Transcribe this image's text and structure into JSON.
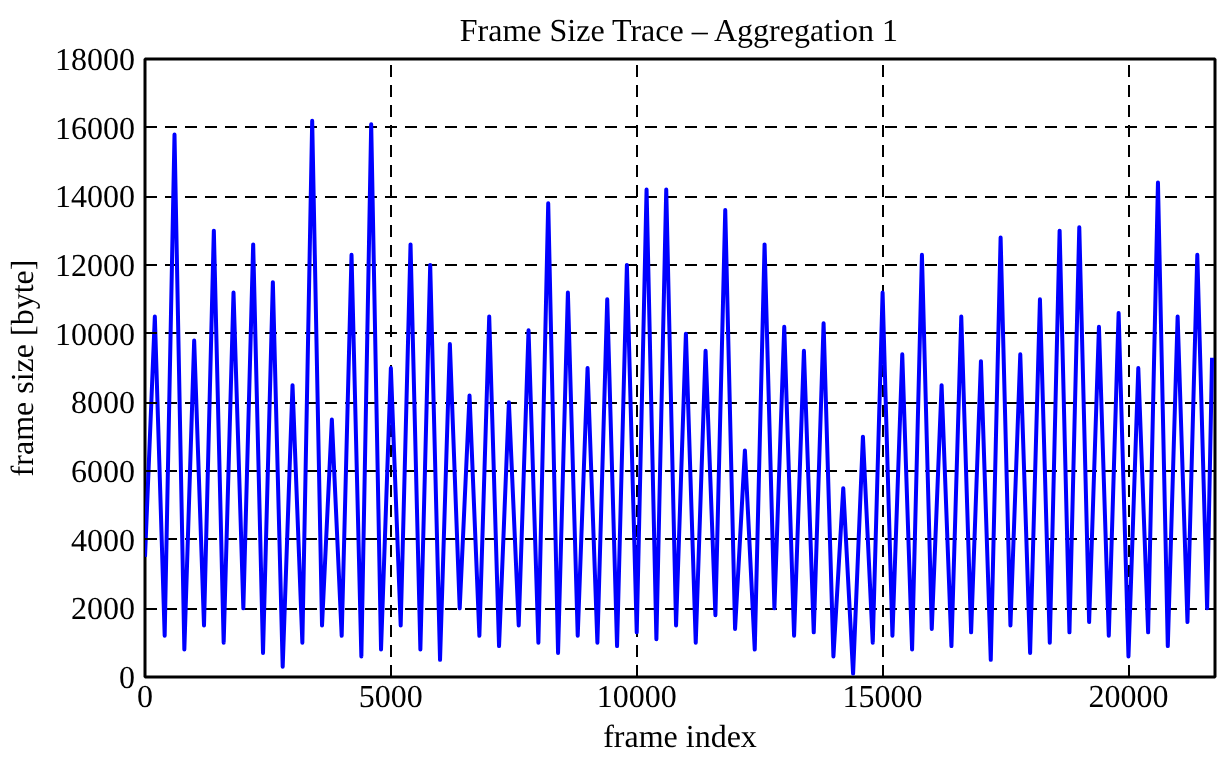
{
  "chart_data": {
    "type": "line",
    "title": "Frame Size Trace – Aggregation 1",
    "xlabel": "frame index",
    "ylabel": "frame size [byte]",
    "xlim": [
      0,
      21760
    ],
    "ylim": [
      0,
      18000
    ],
    "xticks": [
      0,
      5000,
      10000,
      15000,
      20000
    ],
    "yticks": [
      0,
      2000,
      4000,
      6000,
      8000,
      10000,
      12000,
      14000,
      16000,
      18000
    ],
    "grid": true,
    "line_style": "solid",
    "marker": "none",
    "series": [
      {
        "color": "#0000ff",
        "x": [
          0,
          200,
          400,
          600,
          800,
          1000,
          1200,
          1400,
          1600,
          1800,
          2000,
          2200,
          2400,
          2600,
          2800,
          3000,
          3200,
          3400,
          3600,
          3800,
          4000,
          4200,
          4400,
          4600,
          4800,
          5000,
          5200,
          5400,
          5600,
          5800,
          6000,
          6200,
          6400,
          6600,
          6800,
          7000,
          7200,
          7400,
          7600,
          7800,
          8000,
          8200,
          8400,
          8600,
          8800,
          9000,
          9200,
          9400,
          9600,
          9800,
          10000,
          10200,
          10400,
          10600,
          10800,
          11000,
          11200,
          11400,
          11600,
          11800,
          12000,
          12200,
          12400,
          12600,
          12800,
          13000,
          13200,
          13400,
          13600,
          13800,
          14000,
          14200,
          14400,
          14600,
          14800,
          15000,
          15200,
          15400,
          15600,
          15800,
          16000,
          16200,
          16400,
          16600,
          16800,
          17000,
          17200,
          17400,
          17600,
          17800,
          18000,
          18200,
          18400,
          18600,
          18800,
          19000,
          19200,
          19400,
          19600,
          19800,
          20000,
          20200,
          20400,
          20600,
          20800,
          21000,
          21200,
          21400,
          21600,
          21700
        ],
        "values": [
          3500,
          10500,
          1200,
          15800,
          800,
          9800,
          1500,
          13000,
          1000,
          11200,
          2000,
          12600,
          700,
          11500,
          300,
          8500,
          1000,
          16200,
          1500,
          7500,
          1200,
          12300,
          600,
          16100,
          800,
          9000,
          1500,
          12600,
          800,
          12000,
          500,
          9700,
          2000,
          8200,
          1200,
          10500,
          900,
          8000,
          1500,
          10100,
          1000,
          13800,
          700,
          11200,
          1200,
          9000,
          1000,
          11000,
          900,
          12000,
          1300,
          14200,
          1100,
          14200,
          1500,
          10000,
          1000,
          9500,
          1800,
          13600,
          1400,
          6600,
          800,
          12600,
          2000,
          10200,
          1200,
          9500,
          1300,
          10300,
          600,
          5500,
          100,
          7000,
          1000,
          11200,
          1200,
          9400,
          800,
          12300,
          1400,
          8500,
          900,
          10500,
          1300,
          9200,
          500,
          12800,
          1500,
          9400,
          700,
          11000,
          1000,
          13000,
          1300,
          13100,
          1600,
          10200,
          1200,
          10600,
          600,
          9000,
          1300,
          14400,
          900,
          10500,
          1600,
          12300,
          2000,
          9300
        ]
      }
    ]
  }
}
